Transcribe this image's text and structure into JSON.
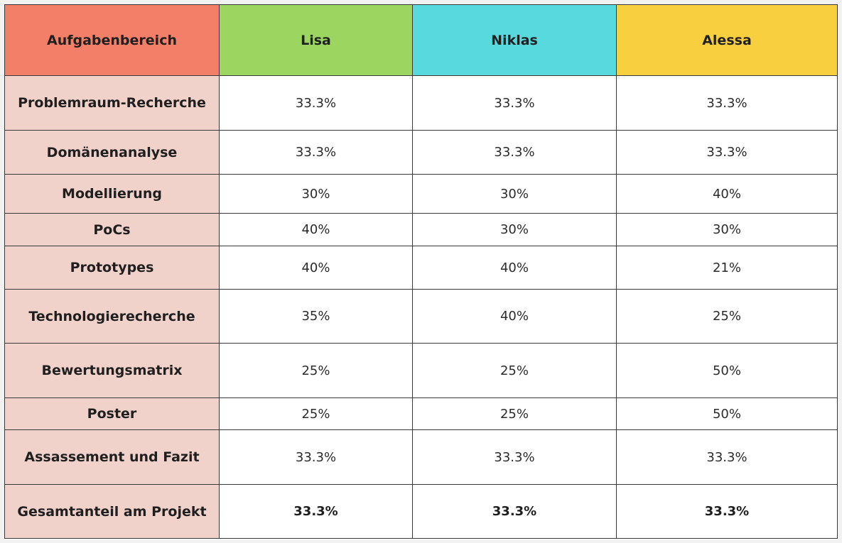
{
  "header": {
    "col0": {
      "label": "Aufgabenbereich",
      "color": "#f47f68"
    },
    "col1": {
      "label": "Lisa",
      "color": "#9cd660"
    },
    "col2": {
      "label": "Niklas",
      "color": "#57d9de"
    },
    "col3": {
      "label": "Alessa",
      "color": "#f8d03f"
    }
  },
  "label_bg_color": "#f1d2cb",
  "rows": [
    {
      "label": "Problemraum-Recherche",
      "lisa": "33.3%",
      "niklas": "33.3%",
      "alessa": "33.3%"
    },
    {
      "label": "Domänenanalyse",
      "lisa": "33.3%",
      "niklas": "33.3%",
      "alessa": "33.3%"
    },
    {
      "label": "Modellierung",
      "lisa": "30%",
      "niklas": "30%",
      "alessa": "40%"
    },
    {
      "label": "PoCs",
      "lisa": "40%",
      "niklas": "30%",
      "alessa": "30%"
    },
    {
      "label": "Prototypes",
      "lisa": "40%",
      "niklas": "40%",
      "alessa": "21%"
    },
    {
      "label": "Technologierecherche",
      "lisa": "35%",
      "niklas": "40%",
      "alessa": "25%"
    },
    {
      "label": "Bewertungsmatrix",
      "lisa": "25%",
      "niklas": "25%",
      "alessa": "50%"
    },
    {
      "label": "Poster",
      "lisa": "25%",
      "niklas": "25%",
      "alessa": "50%"
    },
    {
      "label": "Assassement und Fazit",
      "lisa": "33.3%",
      "niklas": "33.3%",
      "alessa": "33.3%"
    },
    {
      "label": "Gesamtanteil am Projekt",
      "lisa": "33.3%",
      "niklas": "33.3%",
      "alessa": "33.3%"
    }
  ]
}
